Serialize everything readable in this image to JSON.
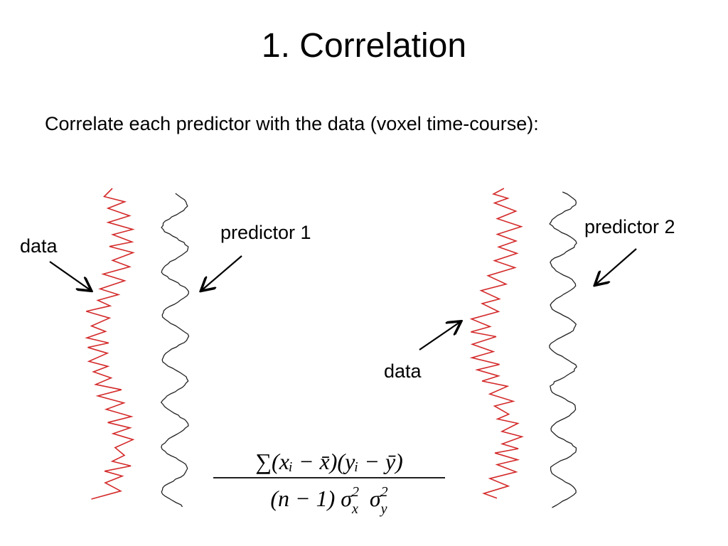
{
  "title": "1. Correlation",
  "subtitle": "Correlate each predictor with the data (voxel time-course):",
  "labels": {
    "data_left": "data",
    "predictor_1": "predictor 1",
    "predictor_2": "predictor 2",
    "data_right": "data"
  },
  "formula": {
    "numerator": "∑(xᵢ − x̄)(yᵢ − ȳ)",
    "denominator": [
      "(n − 1) σ",
      "2",
      "x",
      "  σ",
      "2",
      "y"
    ]
  }
}
